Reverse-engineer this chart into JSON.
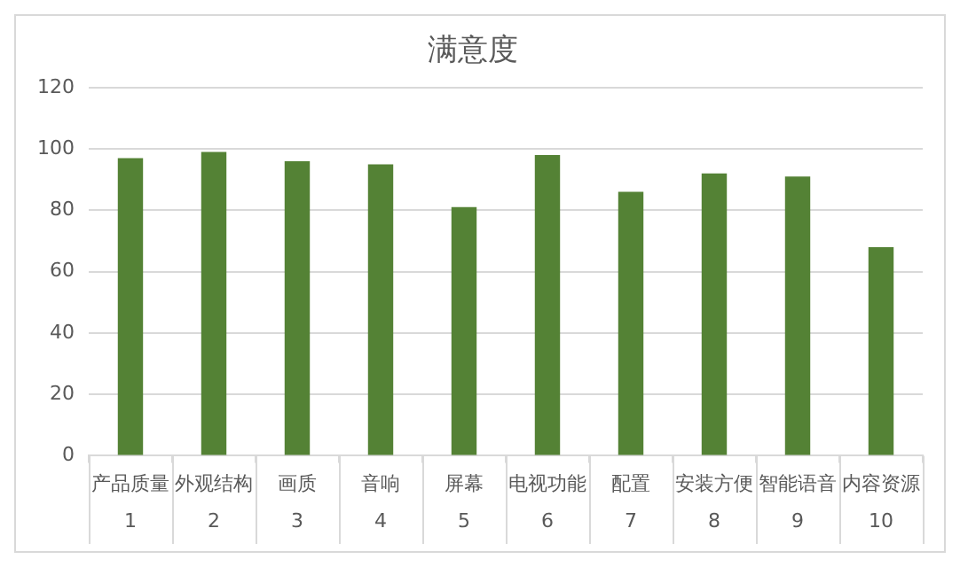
{
  "chart_data": {
    "type": "bar",
    "title": "满意度",
    "categories": [
      "产品质量\n1",
      "外观结构\n2",
      "画质\n3",
      "音响\n4",
      "屏幕\n5",
      "电视功能\n6",
      "配置\n7",
      "安装方便\n8",
      "智能语音\n9",
      "内容资源\n10"
    ],
    "values": [
      97,
      99,
      96,
      95,
      81,
      98,
      86,
      92,
      91,
      68
    ],
    "color": "#548235",
    "ylim": [
      0,
      120
    ],
    "yticks": [
      0,
      20,
      40,
      60,
      80,
      100,
      120
    ],
    "grid": "y",
    "legend": false
  }
}
